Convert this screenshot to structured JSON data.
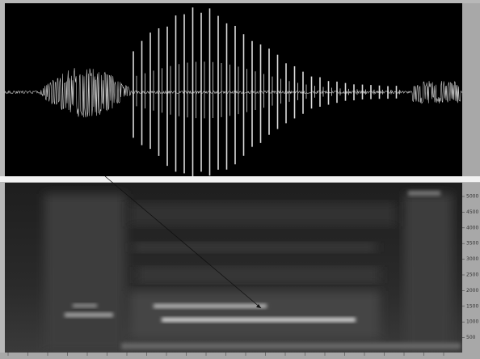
{
  "spectrogram": {
    "freq_labels": [
      "5000",
      "4500",
      "4000",
      "3500",
      "3000",
      "2500",
      "2000",
      "1500",
      "1000",
      "500"
    ]
  }
}
